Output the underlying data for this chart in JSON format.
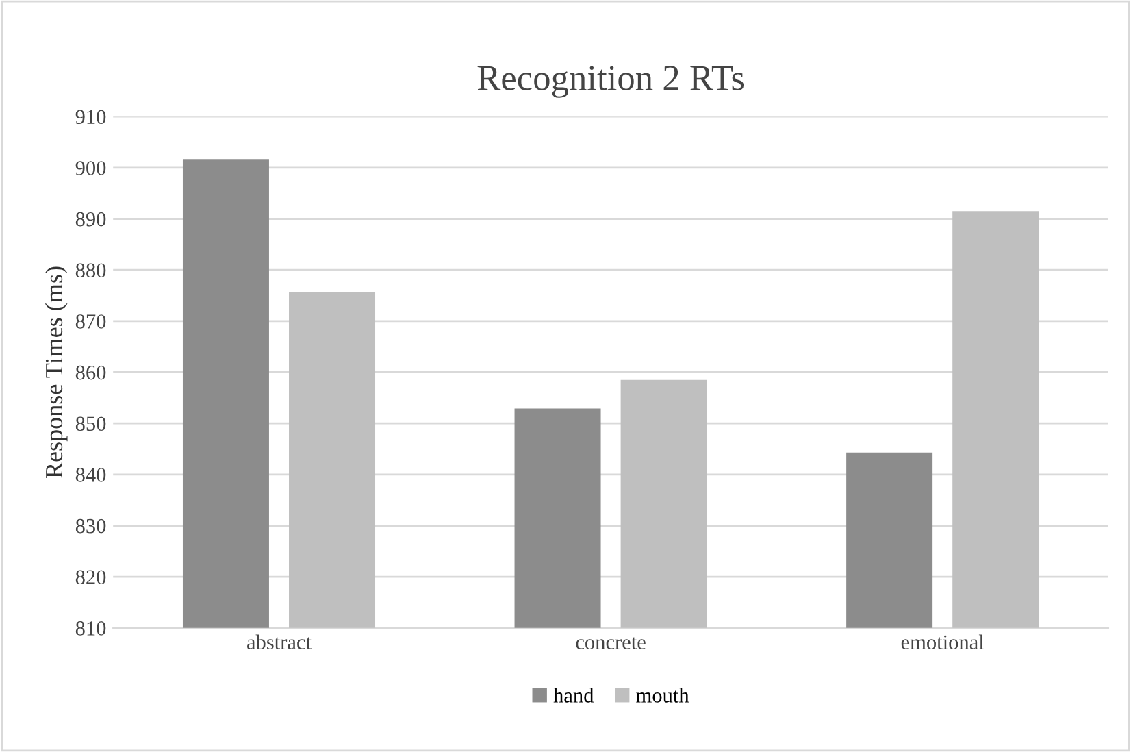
{
  "chart_data": {
    "type": "bar",
    "title": "Recognition 2 RTs",
    "ylabel": "Response Times (ms)",
    "categories": [
      "abstract",
      "concrete",
      "emotional"
    ],
    "series": [
      {
        "name": "hand",
        "color": "#8c8c8c",
        "values": [
          901.7,
          852.9,
          844.3
        ]
      },
      {
        "name": "mouth",
        "color": "#bfbfbf",
        "values": [
          875.7,
          858.5,
          891.5
        ]
      }
    ],
    "ylim": [
      810,
      910
    ],
    "yticks": [
      810,
      820,
      830,
      840,
      850,
      860,
      870,
      880,
      890,
      900,
      910
    ],
    "grid": "y",
    "legend": "bottom"
  }
}
